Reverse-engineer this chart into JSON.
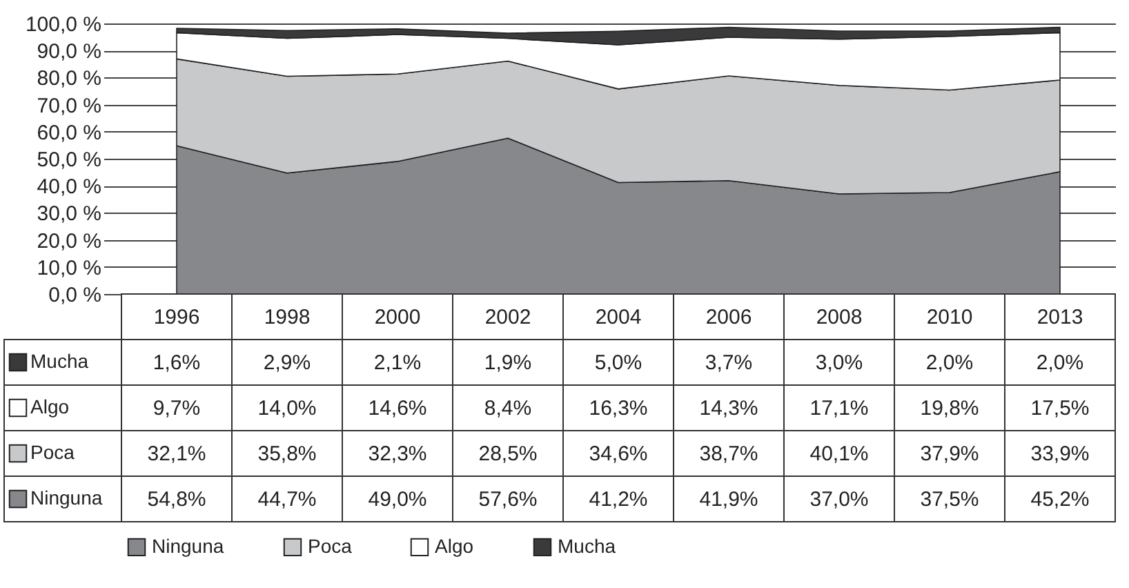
{
  "chart_data": {
    "type": "area",
    "stacked": true,
    "categories": [
      "1996",
      "1998",
      "2000",
      "2002",
      "2004",
      "2006",
      "2008",
      "2010",
      "2013"
    ],
    "series": [
      {
        "name": "Ninguna",
        "color": "#87888b",
        "values": [
          54.8,
          44.7,
          49.0,
          57.6,
          41.2,
          41.9,
          37.0,
          37.5,
          45.2
        ],
        "value_labels": [
          "54,8%",
          "44,7%",
          "49,0%",
          "57,6%",
          "41,2%",
          "41,9%",
          "37,0%",
          "37,5%",
          "45,2%"
        ]
      },
      {
        "name": "Poca",
        "color": "#c8c9cb",
        "values": [
          32.1,
          35.8,
          32.3,
          28.5,
          34.6,
          38.7,
          40.1,
          37.9,
          33.9
        ],
        "value_labels": [
          "32,1%",
          "35,8%",
          "32,3%",
          "28,5%",
          "34,6%",
          "38,7%",
          "40,1%",
          "37,9%",
          "33,9%"
        ]
      },
      {
        "name": "Algo",
        "color": "#ffffff",
        "values": [
          9.7,
          14.0,
          14.6,
          8.4,
          16.3,
          14.3,
          17.1,
          19.8,
          17.5
        ],
        "value_labels": [
          "9,7%",
          "14,0%",
          "14,6%",
          "8,4%",
          "16,3%",
          "14,3%",
          "17,1%",
          "19,8%",
          "17,5%"
        ]
      },
      {
        "name": "Mucha",
        "color": "#3a3a3c",
        "values": [
          1.6,
          2.9,
          2.1,
          1.9,
          5.0,
          3.7,
          3.0,
          2.0,
          2.0
        ],
        "value_labels": [
          "1,6%",
          "2,9%",
          "2,1%",
          "1,9%",
          "5,0%",
          "3,7%",
          "3,0%",
          "2,0%",
          "2,0%"
        ]
      }
    ],
    "ylim": [
      0,
      100
    ],
    "yticks": [
      {
        "value": 0,
        "label": "0,0 %"
      },
      {
        "value": 10,
        "label": "10,0 %"
      },
      {
        "value": 20,
        "label": "20,0 %"
      },
      {
        "value": 30,
        "label": "30,0 %"
      },
      {
        "value": 40,
        "label": "40,0 %"
      },
      {
        "value": 50,
        "label": "50,0 %"
      },
      {
        "value": 60,
        "label": "60,0 %"
      },
      {
        "value": 70,
        "label": "70,0 %"
      },
      {
        "value": 80,
        "label": "80,0 %"
      },
      {
        "value": 90,
        "label": "90,0 %"
      },
      {
        "value": 100,
        "label": "100,0 %"
      }
    ],
    "grid": "y",
    "legend": "bottom"
  }
}
